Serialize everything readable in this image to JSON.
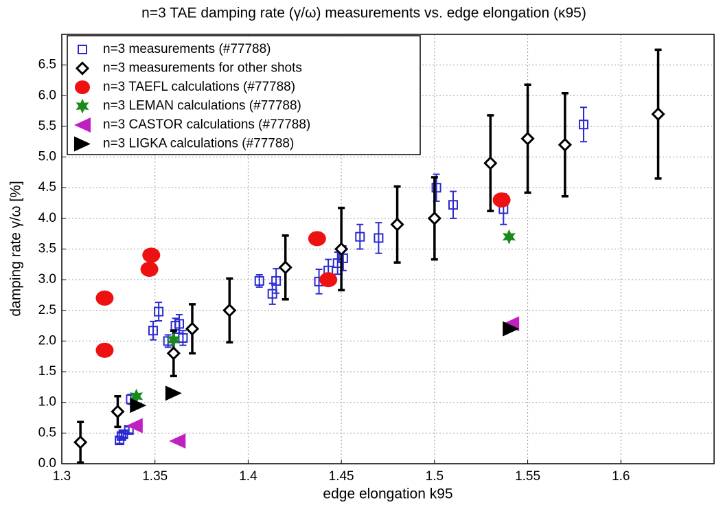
{
  "chart_data": {
    "type": "scatter",
    "title": "n=3 TAE damping rate (γ/ω) measurements vs. edge elongation (κ95)",
    "x_label": "edge elongation k95",
    "y_label": "damping rate γ/ω [%]",
    "xlim": [
      1.3,
      1.65
    ],
    "xticks": [
      1.3,
      1.35,
      1.4,
      1.45,
      1.5,
      1.55,
      1.6
    ],
    "ylim": [
      0,
      7
    ],
    "yticks": [
      {
        "value": 0,
        "label": "0.0"
      },
      0.5,
      {
        "value": 1,
        "label": "1.0"
      },
      1.5,
      {
        "value": 2,
        "label": "2.0"
      },
      2.5,
      {
        "value": 3,
        "label": "3.0"
      },
      3.5,
      {
        "value": 4,
        "label": "4.0"
      },
      4.5,
      {
        "value": 5,
        "label": "5.0"
      },
      5.5,
      {
        "value": 6,
        "label": "6.0"
      },
      6.5
    ],
    "grid": true,
    "legend": "upper left",
    "series": [
      {
        "name": "n=3 measurements (#77788)",
        "color": "#2a2ad0",
        "marker": "square",
        "x": [
          1.331,
          1.332,
          1.333,
          1.336,
          1.337,
          1.349,
          1.352,
          1.357,
          1.361,
          1.363,
          1.365,
          1.406,
          1.413,
          1.415,
          1.438,
          1.443,
          1.448,
          1.451,
          1.46,
          1.47,
          1.501,
          1.51,
          1.537,
          1.58
        ],
        "values": [
          0.38,
          0.45,
          0.48,
          0.55,
          1.05,
          2.17,
          2.48,
          2.0,
          2.25,
          2.28,
          2.05,
          2.98,
          2.77,
          2.98,
          2.97,
          3.15,
          3.27,
          3.35,
          3.7,
          3.68,
          4.5,
          4.22,
          4.15,
          5.53
        ],
        "errors": [
          0.05,
          0.05,
          0.05,
          0.05,
          0.08,
          0.15,
          0.15,
          0.1,
          0.12,
          0.15,
          0.12,
          0.1,
          0.17,
          0.2,
          0.2,
          0.18,
          0.18,
          0.2,
          0.2,
          0.25,
          0.22,
          0.22,
          0.25,
          0.28
        ]
      },
      {
        "name": "n=3 measurements for other shots",
        "color": "#000000",
        "marker": "diamond",
        "x": [
          1.31,
          1.33,
          1.36,
          1.37,
          1.39,
          1.42,
          1.45,
          1.48,
          1.5,
          1.53,
          1.55,
          1.57,
          1.62
        ],
        "values": [
          0.35,
          0.85,
          1.8,
          2.2,
          2.5,
          3.2,
          3.5,
          3.9,
          4.0,
          4.9,
          5.3,
          5.2,
          5.7
        ],
        "errors": [
          0.33,
          0.25,
          0.37,
          0.4,
          0.52,
          0.52,
          0.67,
          0.62,
          0.67,
          0.78,
          0.88,
          0.84,
          1.05
        ]
      },
      {
        "name": "n=3 TAEFL calculations (#77788)",
        "color": "#ee1111",
        "marker": "ellipse",
        "x": [
          1.323,
          1.323,
          1.348,
          1.347,
          1.437,
          1.443,
          1.536
        ],
        "values": [
          2.7,
          1.85,
          3.4,
          3.17,
          3.67,
          3.0,
          4.3
        ]
      },
      {
        "name": "n=3 LEMAN calculations (#77788)",
        "color": "#1a8a1a",
        "marker": "star",
        "x": [
          1.34,
          1.36,
          1.54
        ],
        "values": [
          1.1,
          2.02,
          3.7
        ]
      },
      {
        "name": "n=3 CASTOR calculations (#77788)",
        "color": "#c020c0",
        "marker": "triangle-left",
        "x": [
          1.339,
          1.362,
          1.541
        ],
        "values": [
          0.62,
          0.37,
          2.28
        ]
      },
      {
        "name": "n=3 LIGKA calculations (#77788)",
        "color": "#000000",
        "marker": "triangle-right",
        "x": [
          1.341,
          1.36,
          1.541
        ],
        "values": [
          0.95,
          1.15,
          2.2
        ]
      }
    ]
  }
}
